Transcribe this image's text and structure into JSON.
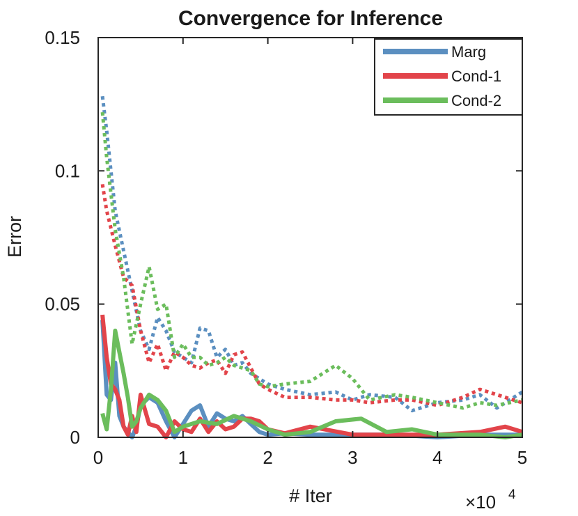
{
  "chart_data": {
    "type": "line",
    "title": "Convergence for Inference",
    "xlabel": "# Iter",
    "ylabel": "Error",
    "x_multiplier_label": "×10",
    "x_multiplier_exp": "4",
    "xlim": [
      0,
      5
    ],
    "ylim": [
      0,
      0.15
    ],
    "x_ticks": [
      0,
      1,
      2,
      3,
      4,
      5
    ],
    "x_tick_labels": [
      "0",
      "1",
      "2",
      "3",
      "4",
      "5"
    ],
    "y_ticks": [
      0,
      0.05,
      0.1,
      0.15
    ],
    "y_tick_labels": [
      "0",
      "0.05",
      "0.1",
      "0.15"
    ],
    "grid": false,
    "legend_position": "top-right",
    "colors": {
      "Marg": "#5b8fc0",
      "Cond-1": "#e2444a",
      "Cond-2": "#6bbd5c"
    },
    "series": [
      {
        "name": "Marg",
        "style": "solid",
        "x": [
          0.05,
          0.1,
          0.15,
          0.2,
          0.25,
          0.3,
          0.35,
          0.4,
          0.45,
          0.5,
          0.6,
          0.7,
          0.8,
          0.9,
          1.0,
          1.1,
          1.2,
          1.3,
          1.4,
          1.5,
          1.6,
          1.7,
          1.8,
          1.9,
          2.0,
          2.2,
          2.5,
          3.0,
          3.5,
          4.0,
          4.5,
          5.0
        ],
        "values": [
          0.044,
          0.016,
          0.014,
          0.028,
          0.008,
          0.004,
          0.002,
          0.0,
          0.004,
          0.012,
          0.015,
          0.013,
          0.006,
          0.0,
          0.005,
          0.01,
          0.012,
          0.004,
          0.009,
          0.007,
          0.006,
          0.008,
          0.005,
          0.002,
          0.001,
          0.0015,
          0.001,
          0.001,
          0.001,
          0.0,
          0.001,
          0.001
        ]
      },
      {
        "name": "Cond-1",
        "style": "solid",
        "x": [
          0.05,
          0.1,
          0.15,
          0.2,
          0.25,
          0.3,
          0.35,
          0.4,
          0.45,
          0.5,
          0.6,
          0.7,
          0.8,
          0.9,
          1.0,
          1.1,
          1.2,
          1.3,
          1.4,
          1.5,
          1.6,
          1.7,
          1.8,
          1.9,
          2.0,
          2.2,
          2.5,
          3.0,
          3.5,
          4.0,
          4.5,
          4.8,
          5.0
        ],
        "values": [
          0.046,
          0.03,
          0.02,
          0.018,
          0.014,
          0.004,
          0.001,
          0.008,
          0.002,
          0.016,
          0.005,
          0.004,
          0.0,
          0.006,
          0.003,
          0.002,
          0.007,
          0.002,
          0.006,
          0.003,
          0.004,
          0.007,
          0.007,
          0.006,
          0.003,
          0.0015,
          0.004,
          0.001,
          0.001,
          0.001,
          0.002,
          0.004,
          0.002
        ]
      },
      {
        "name": "Cond-2",
        "style": "solid",
        "x": [
          0.05,
          0.1,
          0.15,
          0.2,
          0.25,
          0.3,
          0.35,
          0.4,
          0.45,
          0.5,
          0.6,
          0.7,
          0.8,
          0.9,
          1.0,
          1.2,
          1.4,
          1.6,
          1.8,
          2.0,
          2.2,
          2.5,
          2.8,
          3.1,
          3.4,
          3.7,
          4.0,
          4.5,
          4.8,
          5.0
        ],
        "values": [
          0.009,
          0.003,
          0.018,
          0.04,
          0.032,
          0.024,
          0.015,
          0.004,
          0.006,
          0.011,
          0.016,
          0.014,
          0.01,
          0.002,
          0.004,
          0.006,
          0.005,
          0.008,
          0.006,
          0.003,
          0.001,
          0.002,
          0.006,
          0.007,
          0.002,
          0.003,
          0.001,
          0.001,
          0.0,
          0.001
        ]
      },
      {
        "name": "Marg dotted",
        "style": "dotted",
        "legend": false,
        "color_key": "Marg",
        "x": [
          0.05,
          0.1,
          0.2,
          0.3,
          0.4,
          0.5,
          0.6,
          0.7,
          0.8,
          0.9,
          1.0,
          1.1,
          1.2,
          1.3,
          1.4,
          1.5,
          1.6,
          1.7,
          1.8,
          1.9,
          2.0,
          2.2,
          2.5,
          2.8,
          3.0,
          3.2,
          3.5,
          3.7,
          4.0,
          4.3,
          4.5,
          4.7,
          5.0
        ],
        "values": [
          0.128,
          0.115,
          0.085,
          0.07,
          0.055,
          0.04,
          0.033,
          0.045,
          0.04,
          0.032,
          0.03,
          0.028,
          0.041,
          0.04,
          0.03,
          0.033,
          0.027,
          0.028,
          0.024,
          0.022,
          0.02,
          0.018,
          0.016,
          0.017,
          0.014,
          0.016,
          0.015,
          0.01,
          0.013,
          0.014,
          0.016,
          0.011,
          0.017
        ]
      },
      {
        "name": "Cond-1 dotted",
        "style": "dotted",
        "legend": false,
        "color_key": "Cond-1",
        "x": [
          0.05,
          0.1,
          0.2,
          0.3,
          0.4,
          0.5,
          0.6,
          0.7,
          0.8,
          0.9,
          1.0,
          1.1,
          1.2,
          1.3,
          1.4,
          1.5,
          1.6,
          1.7,
          1.8,
          1.9,
          2.0,
          2.2,
          2.5,
          2.8,
          3.0,
          3.2,
          3.5,
          3.7,
          4.0,
          4.3,
          4.5,
          4.7,
          5.0
        ],
        "values": [
          0.095,
          0.085,
          0.072,
          0.06,
          0.057,
          0.04,
          0.028,
          0.035,
          0.025,
          0.032,
          0.03,
          0.027,
          0.026,
          0.028,
          0.029,
          0.024,
          0.031,
          0.032,
          0.026,
          0.02,
          0.018,
          0.015,
          0.015,
          0.014,
          0.014,
          0.013,
          0.014,
          0.014,
          0.012,
          0.015,
          0.018,
          0.016,
          0.013
        ]
      },
      {
        "name": "Cond-2 dotted",
        "style": "dotted",
        "legend": false,
        "color_key": "Cond-2",
        "x": [
          0.05,
          0.1,
          0.2,
          0.3,
          0.4,
          0.5,
          0.6,
          0.7,
          0.8,
          0.9,
          1.0,
          1.1,
          1.2,
          1.3,
          1.4,
          1.5,
          1.6,
          1.7,
          1.8,
          1.9,
          2.0,
          2.2,
          2.5,
          2.8,
          3.0,
          3.2,
          3.5,
          3.7,
          4.0,
          4.3,
          4.5,
          4.7,
          5.0
        ],
        "values": [
          0.122,
          0.105,
          0.078,
          0.06,
          0.035,
          0.05,
          0.064,
          0.048,
          0.05,
          0.03,
          0.035,
          0.03,
          0.03,
          0.027,
          0.028,
          0.03,
          0.027,
          0.026,
          0.025,
          0.02,
          0.019,
          0.02,
          0.021,
          0.027,
          0.022,
          0.014,
          0.016,
          0.015,
          0.013,
          0.011,
          0.013,
          0.012,
          0.014
        ]
      }
    ]
  }
}
